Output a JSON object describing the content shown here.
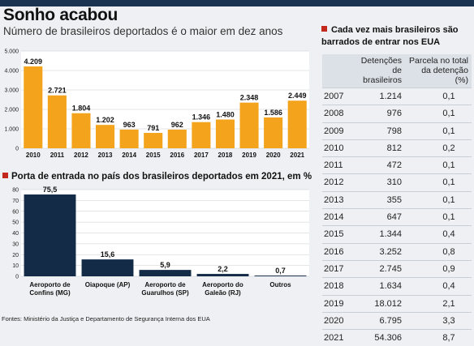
{
  "title": "Sonho acabou",
  "subtitle": "Número de brasileiros deportados é o maior em dez anos",
  "colors": {
    "orange": "#f3a41c",
    "navy": "#132b47",
    "red_marker": "#c3281c"
  },
  "chart_data": [
    {
      "type": "bar",
      "categories": [
        "2010",
        "2011",
        "2012",
        "2013",
        "2014",
        "2015",
        "2016",
        "2017",
        "2018",
        "2019",
        "2020",
        "2021"
      ],
      "values": [
        4209,
        2721,
        1804,
        1202,
        963,
        791,
        962,
        1346,
        1480,
        2348,
        1586,
        2449
      ],
      "value_labels": [
        "4.209",
        "2.721",
        "1.804",
        "1.202",
        "963",
        "791",
        "962",
        "1.346",
        "1.480",
        "2.348",
        "1.586",
        "2.449"
      ],
      "yticks": [
        "0",
        "1.000",
        "2.000",
        "3.000",
        "4.000",
        "5.000"
      ],
      "ylim": [
        0,
        5000
      ],
      "grid": true
    },
    {
      "type": "bar",
      "title": "Porta de entrada no país dos brasileiros deportados em 2021, em %",
      "categories": [
        [
          "Aeroporto de",
          "Confins (MG)"
        ],
        [
          "Oiapoque (AP)"
        ],
        [
          "Aeroporto de",
          "Guarulhos (SP)"
        ],
        [
          "Aeroporto do",
          "Galeão (RJ)"
        ],
        [
          "Outros"
        ]
      ],
      "values": [
        75.5,
        15.6,
        5.9,
        2.2,
        0.7
      ],
      "value_labels": [
        "75,5",
        "15,6",
        "5,9",
        "2,2",
        "0,7"
      ],
      "yticks": [
        "0",
        "10",
        "20",
        "30",
        "40",
        "50",
        "60",
        "70",
        "80"
      ],
      "ylim": [
        0,
        80
      ],
      "grid": true
    },
    {
      "type": "table",
      "title": "Cada vez mais brasileiros são barrados de entrar nos EUA",
      "headers": [
        "",
        "Detenções de brasileiros",
        "Parcela no total da detenção (%)"
      ],
      "rows": [
        [
          "2007",
          "1.214",
          "0,1"
        ],
        [
          "2008",
          "976",
          "0,1"
        ],
        [
          "2009",
          "798",
          "0,1"
        ],
        [
          "2010",
          "812",
          "0,2"
        ],
        [
          "2011",
          "472",
          "0,1"
        ],
        [
          "2012",
          "310",
          "0,1"
        ],
        [
          "2013",
          "355",
          "0,1"
        ],
        [
          "2014",
          "647",
          "0,1"
        ],
        [
          "2015",
          "1.344",
          "0,4"
        ],
        [
          "2016",
          "3.252",
          "0,8"
        ],
        [
          "2017",
          "2.745",
          "0,9"
        ],
        [
          "2018",
          "1.634",
          "0,4"
        ],
        [
          "2019",
          "18.012",
          "2,1"
        ],
        [
          "2020",
          "6.795",
          "3,3"
        ],
        [
          "2021",
          "54.306",
          "8,7"
        ]
      ]
    }
  ],
  "footer": "Fontes: Ministério da Justiça e Departamento de Segurança Interna dos EUA"
}
